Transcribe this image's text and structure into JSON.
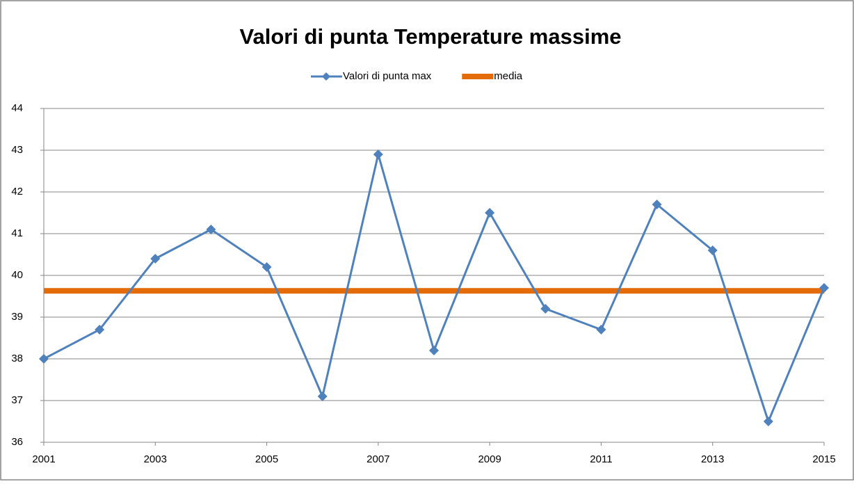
{
  "chart_data": {
    "type": "line",
    "title": "Valori di punta Temperature massime",
    "x": [
      2001,
      2002,
      2003,
      2004,
      2005,
      2006,
      2007,
      2008,
      2009,
      2010,
      2011,
      2012,
      2013,
      2014,
      2015
    ],
    "xlim": [
      2001,
      2015
    ],
    "xticks": [
      2001,
      2003,
      2005,
      2007,
      2009,
      2011,
      2013,
      2015
    ],
    "ylim": [
      36,
      44
    ],
    "yticks": [
      36,
      37,
      38,
      39,
      40,
      41,
      42,
      43,
      44
    ],
    "grid": true,
    "legend": "top",
    "series": [
      {
        "name": "Valori di punta max",
        "color": "#4f81bd",
        "marker": "diamond",
        "values": [
          38.0,
          38.7,
          40.4,
          41.1,
          40.2,
          37.1,
          42.9,
          38.2,
          41.5,
          39.2,
          38.7,
          41.7,
          40.6,
          36.5,
          39.7
        ]
      },
      {
        "name": "media",
        "color": "#e36c09",
        "values": [
          39.63,
          39.63,
          39.63,
          39.63,
          39.63,
          39.63,
          39.63,
          39.63,
          39.63,
          39.63,
          39.63,
          39.63,
          39.63,
          39.63,
          39.63
        ]
      }
    ]
  }
}
